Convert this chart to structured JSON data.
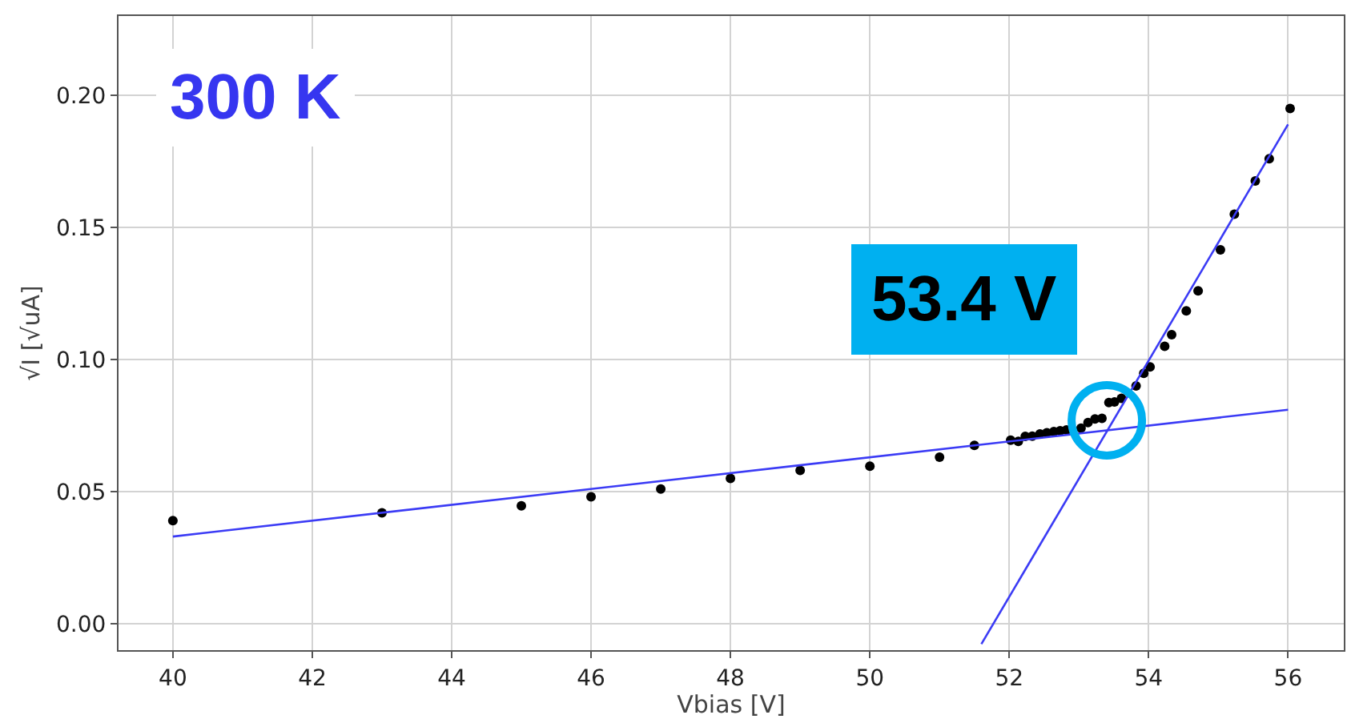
{
  "chart_data": {
    "type": "scatter",
    "xlabel": "Vbias [V]",
    "ylabel": "√I [√uA]",
    "xlim": [
      39.22,
      56.8
    ],
    "xticks": [
      40,
      42,
      44,
      46,
      48,
      50,
      52,
      54,
      56
    ],
    "ylim": [
      -0.01,
      0.23
    ],
    "yticks": [
      {
        "value": 0,
        "label": "0.00"
      },
      {
        "value": 0.05,
        "label": "0.05"
      },
      {
        "value": 0.1,
        "label": "0.10"
      },
      {
        "value": 0.15,
        "label": "0.15"
      },
      {
        "value": 0.2,
        "label": "0.20"
      }
    ],
    "grid": true,
    "annotations": [
      "300 K",
      {
        "text": "53.4 V",
        "x": 53.4,
        "y": 0.077
      }
    ],
    "series": [
      {
        "marker": "circle",
        "color": "#000000",
        "x": [
          40,
          43,
          45,
          46,
          47,
          48,
          49,
          50,
          51,
          51.5,
          52.02,
          52.13,
          52.23,
          52.33,
          52.44,
          52.54,
          52.64,
          52.73,
          52.82,
          53.03,
          53.13,
          53.23,
          53.33,
          53.43,
          53.51,
          53.61,
          53.82,
          53.93,
          54.02,
          54.23,
          54.33,
          54.54,
          54.71,
          55.03,
          55.23,
          55.53,
          55.73,
          56.03
        ],
        "values": [
          0.039,
          0.042,
          0.0446,
          0.048,
          0.051,
          0.055,
          0.058,
          0.0596,
          0.063,
          0.0675,
          0.0695,
          0.069,
          0.0709,
          0.071,
          0.0718,
          0.0723,
          0.0727,
          0.073,
          0.0733,
          0.074,
          0.0761,
          0.0775,
          0.0777,
          0.0837,
          0.0839,
          0.0853,
          0.09,
          0.0948,
          0.0972,
          0.105,
          0.1094,
          0.1184,
          0.126,
          0.1415,
          0.155,
          0.1676,
          0.176,
          0.195
        ]
      },
      {
        "type": "line",
        "marker": "none",
        "color": "#3b3bf5",
        "x": [
          40,
          56
        ],
        "values": [
          0.033,
          0.081
        ]
      },
      {
        "type": "line",
        "marker": "none",
        "color": "#3b3bf5",
        "x": [
          51.6,
          56
        ],
        "values": [
          -0.0077,
          0.189
        ]
      }
    ]
  }
}
